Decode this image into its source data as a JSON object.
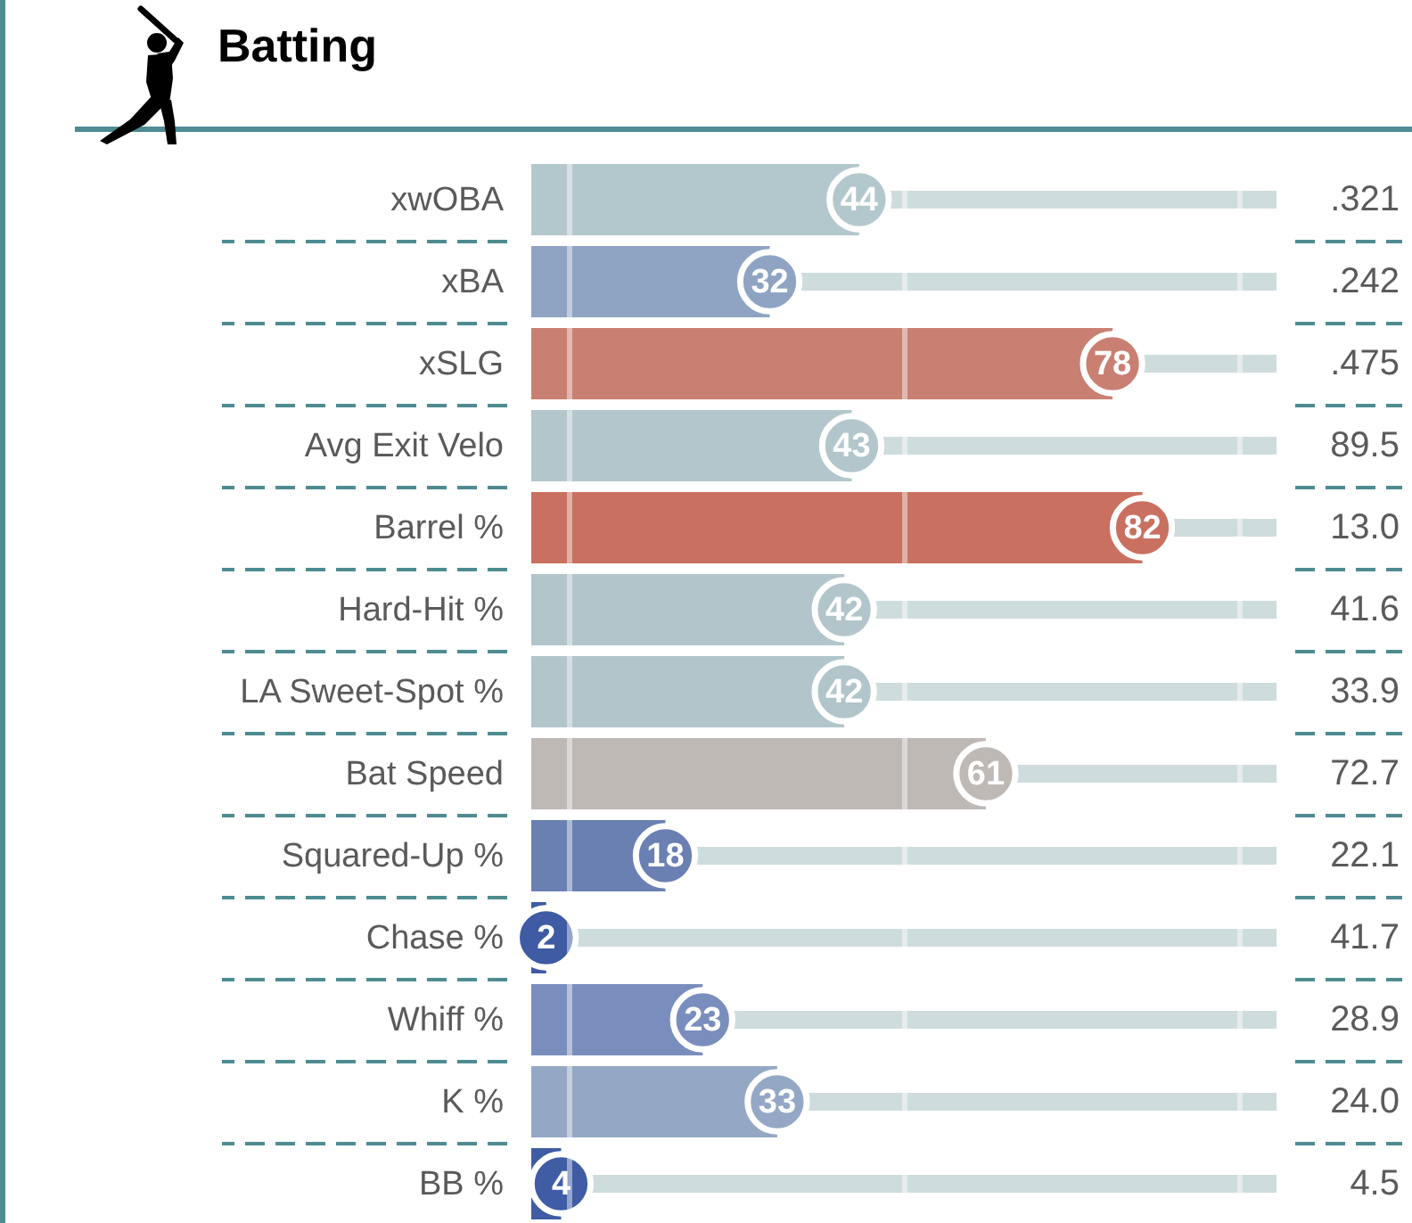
{
  "chart_data": {
    "type": "bar",
    "orientation": "horizontal",
    "title": "Batting",
    "categories": [
      "xwOBA",
      "xBA",
      "xSLG",
      "Avg Exit Velo",
      "Barrel %",
      "Hard-Hit %",
      "LA Sweet-Spot %",
      "Bat Speed",
      "Squared-Up %",
      "Chase %",
      "Whiff %",
      "K %",
      "BB %"
    ],
    "values": [
      44,
      32,
      78,
      43,
      82,
      42,
      42,
      61,
      18,
      2,
      23,
      33,
      4
    ],
    "colors": [
      "#b3c8cd",
      "#8fa4c3",
      "#c98072",
      "#b2c6cc",
      "#c97060",
      "#b1c5cb",
      "#b1c5cb",
      "#bfb9b6",
      "#6a80b2",
      "#3e5ba3",
      "#7a8ebd",
      "#94a8c5",
      "#3f5ca4"
    ],
    "data_labels": true,
    "xlim": [
      0,
      100
    ],
    "xticks": [
      {
        "value": 5,
        "label": null
      },
      {
        "value": 50,
        "label": null
      },
      {
        "value": 95,
        "label": null
      }
    ],
    "grid": "x",
    "tick_labels": "y",
    "annotations": [
      ".321",
      ".242",
      ".475",
      "89.5",
      "13.0",
      "41.6",
      "33.9",
      "72.7",
      "22.1",
      "41.7",
      "28.9",
      "24.0",
      "4.5"
    ]
  }
}
